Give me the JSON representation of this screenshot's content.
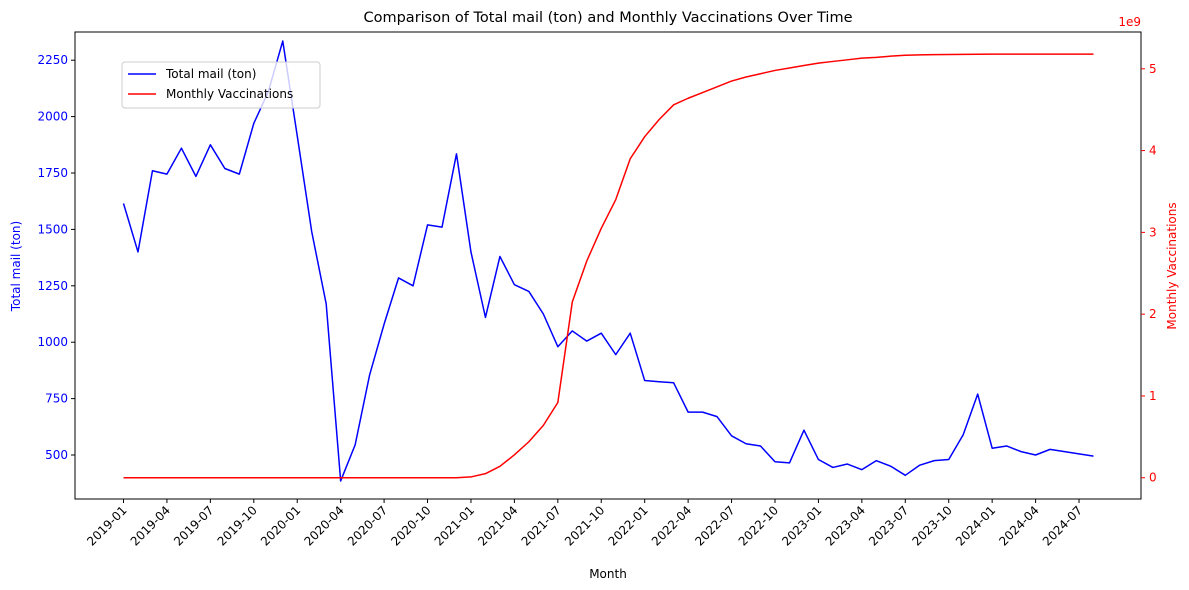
{
  "chart_data": {
    "type": "line",
    "title": "Comparison of Total mail (ton) and Monthly Vaccinations Over Time",
    "xlabel": "Month",
    "x_tick_labels": [
      "2019-01",
      "2019-04",
      "2019-07",
      "2019-10",
      "2020-01",
      "2020-04",
      "2020-07",
      "2020-10",
      "2021-01",
      "2021-04",
      "2021-07",
      "2021-10",
      "2022-01",
      "2022-04",
      "2022-07",
      "2022-10",
      "2023-01",
      "2023-04",
      "2023-07",
      "2023-10",
      "2024-01",
      "2024-04",
      "2024-07"
    ],
    "x_months": [
      "2019-01",
      "2019-02",
      "2019-03",
      "2019-04",
      "2019-05",
      "2019-06",
      "2019-07",
      "2019-08",
      "2019-09",
      "2019-10",
      "2019-11",
      "2019-12",
      "2020-01",
      "2020-02",
      "2020-03",
      "2020-04",
      "2020-05",
      "2020-06",
      "2020-07",
      "2020-08",
      "2020-09",
      "2020-10",
      "2020-11",
      "2020-12",
      "2021-01",
      "2021-02",
      "2021-03",
      "2021-04",
      "2021-05",
      "2021-06",
      "2021-07",
      "2021-08",
      "2021-09",
      "2021-10",
      "2021-11",
      "2021-12",
      "2022-01",
      "2022-02",
      "2022-03",
      "2022-04",
      "2022-05",
      "2022-06",
      "2022-07",
      "2022-08",
      "2022-09",
      "2022-10",
      "2022-11",
      "2022-12",
      "2023-01",
      "2023-02",
      "2023-03",
      "2023-04",
      "2023-05",
      "2023-06",
      "2023-07",
      "2023-08",
      "2023-09",
      "2023-10",
      "2023-11",
      "2023-12",
      "2024-01",
      "2024-02",
      "2024-03",
      "2024-04",
      "2024-05",
      "2024-06",
      "2024-07",
      "2024-08"
    ],
    "y_left": {
      "label": "Total mail (ton)",
      "color": "#0000ff",
      "ticks": [
        500,
        750,
        1000,
        1250,
        1500,
        1750,
        2000,
        2250
      ],
      "tick_labels": [
        "500",
        "750",
        "1000",
        "1250",
        "1500",
        "1750",
        "2000",
        "2250"
      ],
      "ylim": [
        305,
        2375
      ]
    },
    "y_right": {
      "label": "Monthly Vaccinations",
      "color": "#ff0000",
      "ticks": [
        0,
        1,
        2,
        3,
        4,
        5
      ],
      "tick_labels": [
        "0",
        "1",
        "2",
        "3",
        "4",
        "5"
      ],
      "multiplier": "1e9",
      "ylim": [
        -0.26,
        5.45
      ]
    },
    "series": [
      {
        "name": "Total mail (ton)",
        "axis": "left",
        "color": "#0000ff",
        "values": [
          1615,
          1400,
          1760,
          1745,
          1860,
          1735,
          1875,
          1770,
          1745,
          1970,
          2110,
          2335,
          1915,
          1490,
          1170,
          385,
          545,
          855,
          1080,
          1285,
          1250,
          1520,
          1510,
          1835,
          1400,
          1110,
          1380,
          1255,
          1225,
          1125,
          980,
          1050,
          1005,
          1040,
          945,
          1040,
          830,
          825,
          820,
          690,
          690,
          670,
          585,
          550,
          540,
          470,
          465,
          610,
          480,
          445,
          460,
          435,
          475,
          450,
          410,
          455,
          475,
          480,
          590,
          770,
          530,
          540,
          515,
          500,
          525,
          515,
          505,
          495
        ]
      },
      {
        "name": "Monthly Vaccinations",
        "axis": "right",
        "color": "#ff0000",
        "values": [
          0,
          0,
          0,
          0,
          0,
          0,
          0,
          0,
          0,
          0,
          0,
          0,
          0,
          0,
          0,
          0,
          0,
          0,
          0,
          0,
          0,
          0,
          0,
          0,
          0.01,
          0.05,
          0.14,
          0.28,
          0.44,
          0.64,
          0.92,
          2.15,
          2.65,
          3.05,
          3.4,
          3.9,
          4.17,
          4.38,
          4.56,
          4.64,
          4.71,
          4.78,
          4.85,
          4.9,
          4.94,
          4.98,
          5.01,
          5.04,
          5.07,
          5.09,
          5.11,
          5.13,
          5.14,
          5.155,
          5.165,
          5.17,
          5.173,
          5.175,
          5.177,
          5.178,
          5.179,
          5.18,
          5.18,
          5.18,
          5.18,
          5.18,
          5.18,
          5.18
        ]
      }
    ],
    "legend": {
      "placement": "upper-left"
    },
    "grid": false
  }
}
